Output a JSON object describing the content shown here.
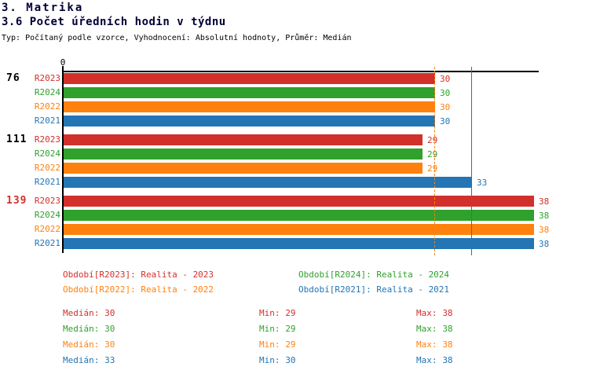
{
  "header": {
    "section_title": "3. Matrika",
    "chart_title": "3.6 Počet úředních hodin v týdnu",
    "subtitle": "Typ: Počítaný podle vzorce, Vyhodnocení: Absolutní hodnoty, Průměr: Medián"
  },
  "colors": {
    "red": "#D2302B",
    "green": "#2FA12C",
    "orange": "#FF810D",
    "blue": "#2375B4",
    "title": "#000035",
    "black": "#000000"
  },
  "chart_data": {
    "type": "bar",
    "orientation": "horizontal",
    "title": "3.6 Počet úředních hodin v týdnu",
    "xlabel": "",
    "ylabel": "",
    "x_axis": {
      "origin_label": "0",
      "min": 0,
      "max": 38.4,
      "gridlines": false
    },
    "categories": [
      "76",
      "111",
      "139"
    ],
    "category_label_colors": [
      "black",
      "black",
      "red"
    ],
    "series": [
      {
        "name": "R2023",
        "color_key": "red",
        "values": [
          30,
          29,
          38
        ]
      },
      {
        "name": "R2024",
        "color_key": "green",
        "values": [
          30,
          29,
          38
        ]
      },
      {
        "name": "R2022",
        "color_key": "orange",
        "values": [
          30,
          29,
          38
        ]
      },
      {
        "name": "R2021",
        "color_key": "blue",
        "values": [
          30,
          33,
          38
        ]
      }
    ],
    "bar_value_labels_shown": true,
    "median_lines": [
      {
        "value": 30,
        "color_key": "orange",
        "style": "dashed"
      },
      {
        "value": 33,
        "color_key": "blue",
        "style": "solid"
      }
    ]
  },
  "legend": {
    "items": [
      {
        "text": "Období[R2023]: Realita - 2023",
        "color_key": "red"
      },
      {
        "text": "Období[R2024]: Realita - 2024",
        "color_key": "green"
      },
      {
        "text": "Období[R2022]: Realita - 2022",
        "color_key": "orange"
      },
      {
        "text": "Období[R2021]: Realita - 2021",
        "color_key": "blue"
      }
    ]
  },
  "stats": {
    "labels": {
      "median": "Medián:",
      "min": "Min:",
      "max": "Max:"
    },
    "rows": [
      {
        "series": "R2023",
        "color_key": "red",
        "median": "30",
        "min": "29",
        "max": "38"
      },
      {
        "series": "R2024",
        "color_key": "green",
        "median": "30",
        "min": "29",
        "max": "38"
      },
      {
        "series": "R2022",
        "color_key": "orange",
        "median": "30",
        "min": "29",
        "max": "38"
      },
      {
        "series": "R2021",
        "color_key": "blue",
        "median": "33",
        "min": "30",
        "max": "38"
      }
    ]
  }
}
